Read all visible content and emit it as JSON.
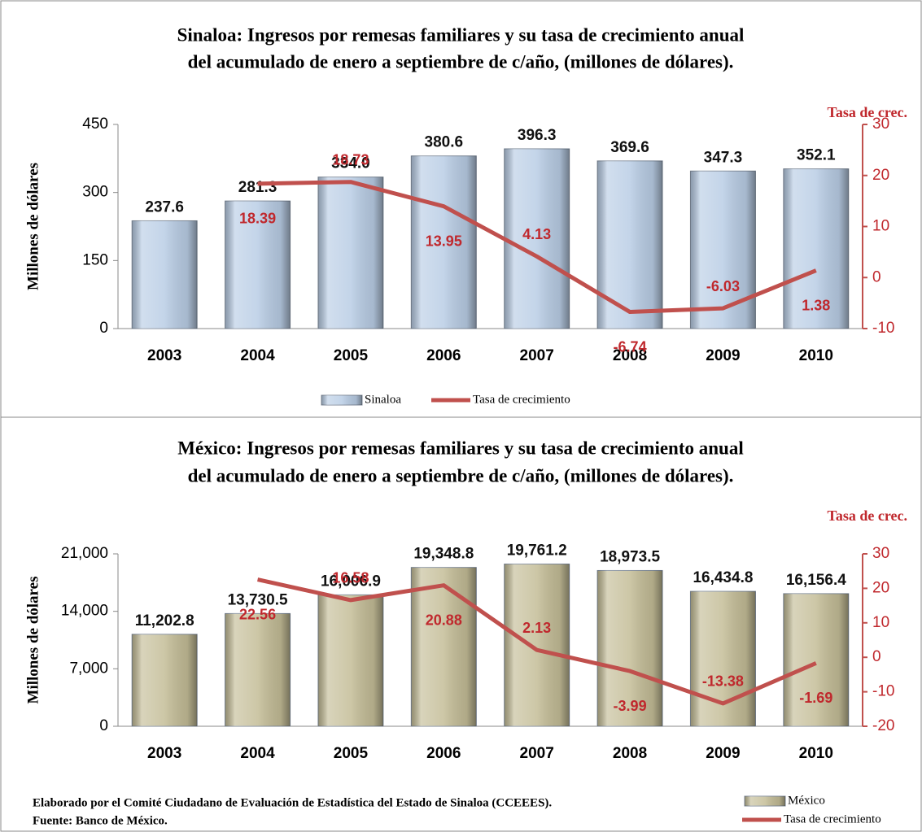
{
  "chart_data": [
    {
      "type": "combo",
      "title": [
        "Sinaloa: Ingresos por remesas familiares y su tasa de crecimiento anual",
        "del acumulado de enero a septiembre de c/año, (millones de dólares)."
      ],
      "y_label": "Millones de dólares",
      "y2_label": "Tasa de crec.",
      "categories": [
        "2003",
        "2004",
        "2005",
        "2006",
        "2007",
        "2008",
        "2009",
        "2010"
      ],
      "series": [
        {
          "name": "Sinaloa",
          "type": "bar",
          "color": "#b9cde5",
          "values": [
            237.6,
            281.3,
            334.0,
            380.6,
            396.3,
            369.6,
            347.3,
            352.1
          ],
          "value_labels": [
            "237.6",
            "281.3",
            "334.0",
            "380.6",
            "396.3",
            "369.6",
            "347.3",
            "352.1"
          ]
        },
        {
          "name": "Tasa de crecimiento",
          "type": "line",
          "axis": "y2",
          "color": "#c0504d",
          "values": [
            null,
            18.39,
            18.73,
            13.95,
            4.13,
            -6.74,
            -6.03,
            1.38
          ]
        }
      ],
      "ylim": [
        0,
        450
      ],
      "yticks": [
        0,
        150,
        300,
        450
      ],
      "y2lim": [
        -10,
        30
      ],
      "y2ticks": [
        -10,
        0,
        10,
        20,
        30
      ],
      "legend": "bottom"
    },
    {
      "type": "combo",
      "title": [
        "México: Ingresos por remesas familiares y su tasa de crecimiento anual",
        "del acumulado de enero a septiembre de c/año, (millones de dólares)."
      ],
      "y_label": "Millones de dólares",
      "y2_label": "Tasa de crec.",
      "categories": [
        "2003",
        "2004",
        "2005",
        "2006",
        "2007",
        "2008",
        "2009",
        "2010"
      ],
      "series": [
        {
          "name": "México",
          "type": "bar",
          "color": "#c4bd97",
          "values": [
            11202.8,
            13730.5,
            16006.9,
            19348.8,
            19761.2,
            18973.5,
            16434.8,
            16156.4
          ],
          "value_labels": [
            "11,202.8",
            "13,730.5",
            "16,006.9",
            "19,348.8",
            "19,761.2",
            "18,973.5",
            "16,434.8",
            "16,156.4"
          ]
        },
        {
          "name": "Tasa de crecimiento",
          "type": "line",
          "axis": "y2",
          "color": "#c0504d",
          "values": [
            null,
            22.56,
            16.58,
            20.88,
            2.13,
            -3.99,
            -13.38,
            -1.69
          ]
        }
      ],
      "ylim": [
        0,
        21000
      ],
      "yticks": [
        0,
        {
          "value": 7000,
          "label": "7,000"
        },
        {
          "value": 14000,
          "label": "14,000"
        },
        {
          "value": 21000,
          "label": "21,000"
        }
      ],
      "y2lim": [
        -20,
        30
      ],
      "y2ticks": [
        -20,
        -10,
        0,
        10,
        20,
        30
      ],
      "legend": "bottom-right"
    }
  ],
  "notes": [
    "Elaborado por el Comité Ciudadano de Evaluación de Estadística del Estado de Sinaloa (CCEEES).",
    "Fuente: Banco de México."
  ]
}
